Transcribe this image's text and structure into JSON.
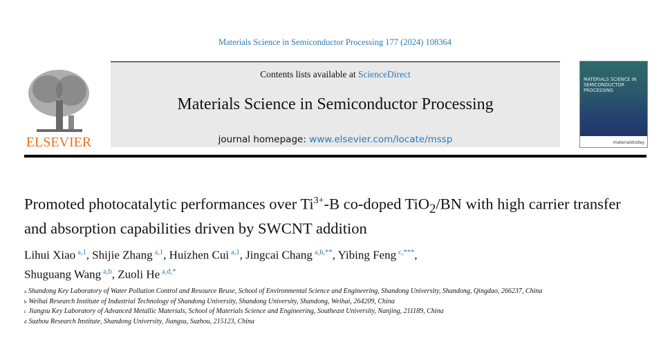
{
  "citation": "Materials Science in Semiconductor Processing 177 (2024) 108364",
  "publisher_logo": "ELSEVIER",
  "header": {
    "contents_prefix": "Contents lists available at ",
    "contents_link": "ScienceDirect",
    "journal_title": "Materials Science in Semiconductor Processing",
    "homepage_prefix": "journal homepage: ",
    "homepage_link": "www.elsevier.com/locate/mssp"
  },
  "cover": {
    "title": "MATERIALS SCIENCE IN SEMICONDUCTOR PROCESSING",
    "brand": "materialstoday"
  },
  "colors": {
    "link": "#2a7ab5",
    "header_box": "#e9e9e9",
    "elsevier_orange": "#e9711c"
  },
  "article": {
    "title_part1": "Promoted photocatalytic performances over Ti",
    "title_sup": "3+",
    "title_part2": "-B co-doped TiO",
    "title_sub": "2",
    "title_part3": "/BN with high carrier transfer and absorption capabilities driven by SWCNT addition",
    "authors": [
      {
        "name": "Lihui Xiao",
        "marks": "a,1",
        "sep": ", "
      },
      {
        "name": "Shijie Zhang",
        "marks": "a,1",
        "sep": ", "
      },
      {
        "name": "Huizhen Cui",
        "marks": "a,1",
        "sep": ", "
      },
      {
        "name": "Jingcai Chang",
        "marks": "a,b,**",
        "sep": ", "
      },
      {
        "name": "Yibing Feng",
        "marks": "c,***",
        "sep": ", "
      },
      {
        "name": "Shuguang Wang",
        "marks": "a,b",
        "sep": ", "
      },
      {
        "name": "Zuoli He",
        "marks": "a,d,*",
        "sep": ""
      }
    ],
    "affiliations": [
      {
        "mark": "a",
        "text": "Shandong Key Laboratory of Water Pollution Control and Resource Reuse, School of Environmental Science and Engineering, Shandong University, Shandong, Qingdao, 266237, China"
      },
      {
        "mark": "b",
        "text": "Weihai Research Institute of Industrial Technology of Shandong University, Shandong University, Shandong, Weihai, 264209, China"
      },
      {
        "mark": "c",
        "text": "Jiangsu Key Laboratory of Advanced Metallic Materials, School of Materials Science and Engineering, Southeast University, Nanjing, 211189, China"
      },
      {
        "mark": "d",
        "text": "Suzhou Research Institute, Shandong University, Jiangsu, Suzhou, 215123, China"
      }
    ]
  }
}
